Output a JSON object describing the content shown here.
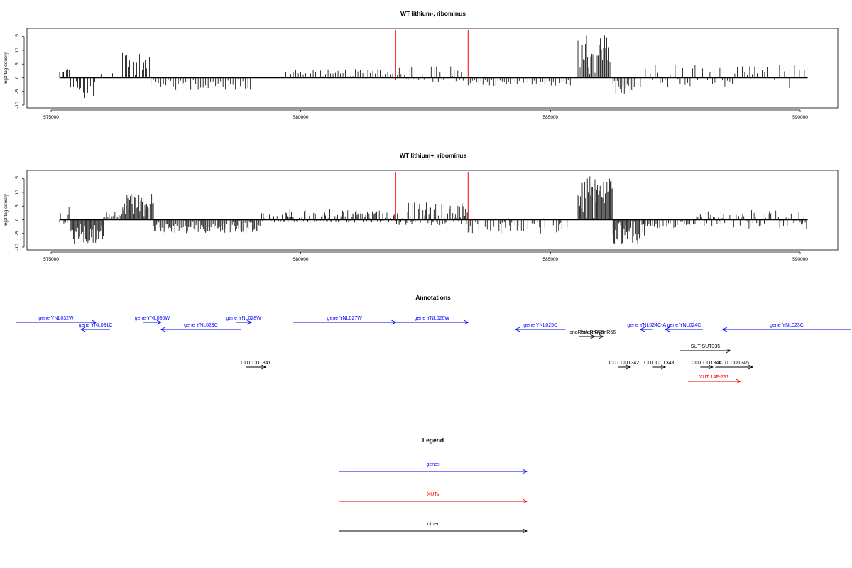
{
  "chart_data": [
    {
      "type": "bar",
      "title": "WT lithium-, ribominus",
      "ylabel": "log2 tag density",
      "xlim": [
        575000,
        590000
      ],
      "ylim": [
        -10,
        17
      ],
      "xticks": [
        575000,
        580000,
        585000,
        590000
      ],
      "yticks": [
        -10,
        -5,
        0,
        5,
        10,
        15
      ],
      "markers_x": [
        581900,
        583350
      ],
      "marker_color": "#ff0000",
      "bar_color": "#000000",
      "segments": [
        {
          "x0": 575170,
          "x1": 575250,
          "lo": 0,
          "hi": 3.2,
          "d": 5
        },
        {
          "x0": 575250,
          "x1": 575390,
          "lo": 0,
          "hi": 3.8,
          "d": 2
        },
        {
          "x0": 575390,
          "x1": 575900,
          "lo": -7.5,
          "hi": 0,
          "d": 2
        },
        {
          "x0": 576000,
          "x1": 576150,
          "lo": 0,
          "hi": 1.6,
          "d": 4
        },
        {
          "x0": 576160,
          "x1": 576260,
          "lo": 0,
          "hi": 2.5,
          "d": 5
        },
        {
          "x0": 576400,
          "x1": 576980,
          "lo": 0,
          "hi": 9.5,
          "d": 2
        },
        {
          "x0": 577000,
          "x1": 579000,
          "lo": -4.5,
          "hi": 0,
          "d": 3.5
        },
        {
          "x0": 579000,
          "x1": 579700,
          "lo": 0,
          "hi": 0,
          "d": 0
        },
        {
          "x0": 579700,
          "x1": 581900,
          "lo": 0,
          "hi": 3.2,
          "d": 3.5
        },
        {
          "x0": 581900,
          "x1": 583350,
          "lo": -1.5,
          "hi": 4.5,
          "d": 2.5
        },
        {
          "x0": 583350,
          "x1": 585400,
          "lo": -3,
          "hi": 0,
          "d": 3
        },
        {
          "x0": 585550,
          "x1": 586200,
          "lo": 0,
          "hi": 15.5,
          "d": 1.5
        },
        {
          "x0": 586250,
          "x1": 586700,
          "lo": -6,
          "hi": 0,
          "d": 2
        },
        {
          "x0": 586700,
          "x1": 590150,
          "lo": -3.8,
          "hi": 5,
          "d": 3.5
        }
      ]
    },
    {
      "type": "bar",
      "title": "WT lithium+, ribominus",
      "ylabel": "log2 tag density",
      "xlim": [
        575000,
        590000
      ],
      "ylim": [
        -10,
        17
      ],
      "xticks": [
        575000,
        580000,
        585000,
        590000
      ],
      "yticks": [
        -10,
        -5,
        0,
        5,
        10,
        15
      ],
      "markers_x": [
        581900,
        583350
      ],
      "marker_color": "#ff0000",
      "bar_color": "#000000",
      "segments": [
        {
          "x0": 575170,
          "x1": 575380,
          "lo": -3,
          "hi": 6,
          "d": 1.2
        },
        {
          "x0": 575380,
          "x1": 576050,
          "lo": -9,
          "hi": 0,
          "d": 1.2
        },
        {
          "x0": 576050,
          "x1": 576400,
          "lo": 0,
          "hi": 3,
          "d": 2
        },
        {
          "x0": 576400,
          "x1": 577050,
          "lo": 0,
          "hi": 10,
          "d": 1.2
        },
        {
          "x0": 577050,
          "x1": 579200,
          "lo": -5,
          "hi": 0,
          "d": 1.5
        },
        {
          "x0": 579200,
          "x1": 581900,
          "lo": -1,
          "hi": 4,
          "d": 1.2
        },
        {
          "x0": 581900,
          "x1": 583350,
          "lo": -2,
          "hi": 7,
          "d": 1.2
        },
        {
          "x0": 583350,
          "x1": 585400,
          "lo": -5,
          "hi": 0.5,
          "d": 1.5
        },
        {
          "x0": 585550,
          "x1": 586250,
          "lo": 0,
          "hi": 16.5,
          "d": 1.2
        },
        {
          "x0": 586250,
          "x1": 586900,
          "lo": -9,
          "hi": 0,
          "d": 1.2
        },
        {
          "x0": 586900,
          "x1": 587900,
          "lo": -3,
          "hi": 0,
          "d": 2.5
        },
        {
          "x0": 587900,
          "x1": 590150,
          "lo": -3.5,
          "hi": 3.5,
          "d": 1.8
        }
      ]
    }
  ],
  "annotations": {
    "title": "Annotations",
    "xlim": [
      575000,
      590000
    ],
    "rows": {
      "1": [
        {
          "label": "gene YNL032W",
          "start": 574300,
          "end": 575900,
          "strand": "+",
          "cls": "genes"
        },
        {
          "label": "gene YNL030W",
          "start": 576850,
          "end": 577200,
          "strand": "+",
          "cls": "genes"
        },
        {
          "label": "gene YNL028W",
          "start": 578700,
          "end": 579010,
          "strand": "+",
          "cls": "genes"
        },
        {
          "label": "gene YNL027W",
          "start": 579850,
          "end": 581900,
          "strand": "+",
          "cls": "genes"
        },
        {
          "label": "gene YNL026W",
          "start": 581900,
          "end": 583350,
          "strand": "+",
          "cls": "genes"
        }
      ],
      "2": [
        {
          "label": "gene YNL031C",
          "start": 575600,
          "end": 576180,
          "strand": "-",
          "cls": "genes"
        },
        {
          "label": "gene YNL029C",
          "start": 577200,
          "end": 578800,
          "strand": "-",
          "cls": "genes"
        },
        {
          "label": "gene YNL025C",
          "start": 584300,
          "end": 585300,
          "strand": "-",
          "cls": "genes"
        },
        {
          "label": "gene YNL024C-A",
          "start": 586800,
          "end": 587050,
          "strand": "-",
          "cls": "genes"
        },
        {
          "label": "gene YNL024C",
          "start": 587300,
          "end": 588050,
          "strand": "-",
          "cls": "genes"
        },
        {
          "label": "gene YNL023C",
          "start": 588450,
          "end": 591400,
          "strand": "-",
          "cls": "genes"
        }
      ],
      "3": [
        {
          "label": "snoRNA snR66",
          "start": 585570,
          "end": 585880,
          "strand": "+",
          "cls": "other"
        },
        {
          "label": "snoRNA snR66",
          "start": 585880,
          "end": 586050,
          "strand": "+",
          "cls": "other"
        }
      ],
      "4": [
        {
          "label": "SUT SUT335",
          "start": 587600,
          "end": 588600,
          "strand": "+",
          "cls": "other"
        }
      ],
      "5": [
        {
          "label": "CUT CUT341",
          "start": 578900,
          "end": 579300,
          "strand": "+",
          "cls": "other"
        },
        {
          "label": "CUT CUT342",
          "start": 586350,
          "end": 586600,
          "strand": "+",
          "cls": "other"
        },
        {
          "label": "CUT CUT343",
          "start": 587050,
          "end": 587300,
          "strand": "+",
          "cls": "other"
        },
        {
          "label": "CUT CUT344",
          "start": 588000,
          "end": 588250,
          "strand": "+",
          "cls": "other"
        },
        {
          "label": "CUT CUT345",
          "start": 588300,
          "end": 589050,
          "strand": "+",
          "cls": "other"
        }
      ],
      "6": [
        {
          "label": "XUT 14F-231",
          "start": 587750,
          "end": 588800,
          "strand": "+",
          "cls": "XUTs"
        }
      ]
    }
  },
  "legend": {
    "title": "Legend",
    "items": [
      {
        "label": "genes",
        "color": "#0000ff"
      },
      {
        "label": "XUTs",
        "color": "#ff0000"
      },
      {
        "label": "other",
        "color": "#000000"
      }
    ]
  },
  "colors": {
    "genes": "#0000ff",
    "XUTs": "#ff0000",
    "other": "#000000"
  }
}
